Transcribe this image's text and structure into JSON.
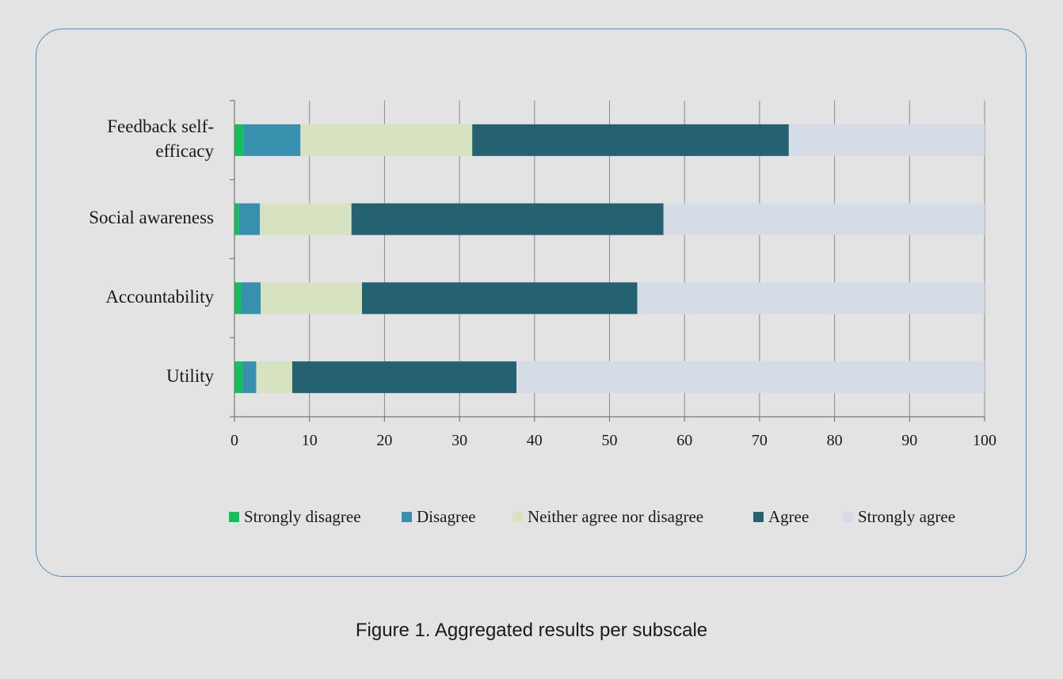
{
  "chart_data": {
    "type": "bar",
    "orientation": "horizontal",
    "stacked": true,
    "categories": [
      "Feedback self-efficacy",
      "Social awareness",
      "Accountability",
      "Utility"
    ],
    "category_lines": [
      [
        "Feedback self-",
        "efficacy"
      ],
      [
        "Social awareness"
      ],
      [
        "Accountability"
      ],
      [
        "Utility"
      ]
    ],
    "series": [
      {
        "name": "Strongly disagree",
        "color": "#13c05a",
        "values": [
          1.2,
          0.6,
          0.9,
          1.1
        ]
      },
      {
        "name": "Disagree",
        "color": "#3791ae",
        "values": [
          7.6,
          2.8,
          2.6,
          1.8
        ]
      },
      {
        "name": "Neither agree nor disagree",
        "color": "#d7e3c0",
        "values": [
          22.9,
          12.2,
          13.5,
          4.8
        ]
      },
      {
        "name": "Agree",
        "color": "#246271",
        "values": [
          42.2,
          41.6,
          36.7,
          29.9
        ]
      },
      {
        "name": "Strongly agree",
        "color": "#d5dce6",
        "values": [
          26.1,
          42.8,
          46.3,
          62.4
        ]
      }
    ],
    "xlim": [
      0,
      100
    ],
    "x_ticks": [
      0,
      10,
      20,
      30,
      40,
      50,
      60,
      70,
      80,
      90,
      100
    ],
    "grid": "vertical",
    "legend_position": "bottom",
    "xlabel": "",
    "ylabel": ""
  },
  "caption": "Figure 1. Aggregated results per subscale"
}
